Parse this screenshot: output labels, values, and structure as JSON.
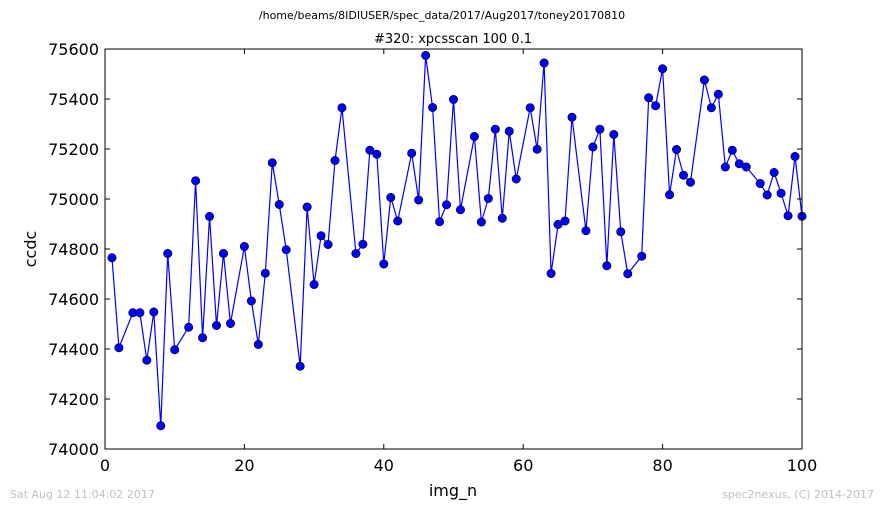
{
  "figure": {
    "suptitle": "/home/beams/8IDIUSER/spec_data/2017/Aug2017/toney20170810",
    "footer_left": "Sat Aug 12 11:04:02 2017",
    "footer_right": "spec2nexus, (C) 2014-2017"
  },
  "chart_data": {
    "type": "line",
    "title": "#320: xpcsscan 100 0.1",
    "xlabel": "img_n",
    "ylabel": "ccdc",
    "xlim": [
      0,
      100
    ],
    "ylim": [
      74000,
      75600
    ],
    "xticks": [
      0,
      20,
      40,
      60,
      80,
      100
    ],
    "yticks": [
      74000,
      74200,
      74400,
      74600,
      74800,
      75000,
      75200,
      75400,
      75600
    ],
    "grid": false,
    "line_color": "#0000ff",
    "marker": "circle",
    "series": [
      {
        "x": [
          1,
          2,
          4,
          5,
          6,
          7,
          8,
          9,
          10,
          12,
          13,
          14,
          15,
          16,
          17,
          18,
          20,
          21,
          22,
          23,
          24,
          25,
          26,
          28,
          29,
          30,
          31,
          32,
          33,
          34,
          36,
          37,
          38,
          39,
          40,
          41,
          42,
          44,
          45,
          46,
          47,
          48,
          49,
          50,
          51,
          53,
          54,
          55,
          56,
          57,
          58,
          59,
          61,
          62,
          63,
          64,
          65,
          66,
          67,
          69,
          70,
          71,
          72,
          73,
          74,
          75,
          77,
          78,
          79,
          80,
          81,
          82,
          83,
          84,
          86,
          87,
          88,
          89,
          90,
          91,
          92,
          94,
          95,
          96,
          97,
          98,
          99,
          100
        ],
        "y": [
          74765,
          74405,
          74545,
          74545,
          74355,
          74548,
          74093,
          74782,
          74397,
          74487,
          75073,
          74445,
          74930,
          74494,
          74782,
          74502,
          74810,
          74592,
          74418,
          74703,
          75145,
          74978,
          74797,
          74331,
          74968,
          74658,
          74853,
          74818,
          75154,
          75365,
          74782,
          74819,
          75195,
          75179,
          74740,
          75006,
          74912,
          75183,
          74996,
          75574,
          75366,
          74909,
          74977,
          75398,
          74957,
          75250,
          74908,
          75002,
          75279,
          74923,
          75271,
          75080,
          75365,
          75199,
          75544,
          74702,
          74898,
          74912,
          75327,
          74873,
          75208,
          75279,
          74733,
          75258,
          74869,
          74701,
          74771,
          75405,
          75373,
          75521,
          75017,
          75198,
          75095,
          75067,
          75476,
          75365,
          75419,
          75128,
          75195,
          75141,
          75128,
          75062,
          75016,
          75106,
          75023,
          74933,
          75170,
          74931
        ]
      }
    ]
  }
}
